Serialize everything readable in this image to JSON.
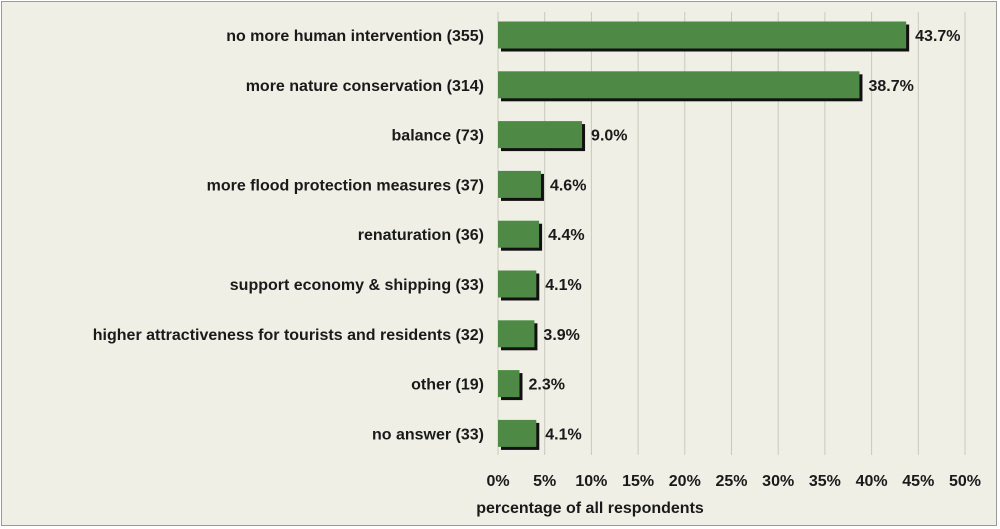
{
  "chart_data": {
    "type": "bar",
    "orientation": "horizontal",
    "categories": [
      "no more human intervention (355)",
      "more nature conservation (314)",
      "balance (73)",
      "more flood protection measures (37)",
      "renaturation (36)",
      "support economy & shipping (33)",
      "higher attractiveness for tourists and residents (32)",
      "other (19)",
      "no answer (33)"
    ],
    "values": [
      43.7,
      38.7,
      9.0,
      4.6,
      4.4,
      4.1,
      3.9,
      2.3,
      4.1
    ],
    "data_labels": [
      "43.7%",
      "38.7%",
      "9.0%",
      "4.6%",
      "4.4%",
      "4.1%",
      "3.9%",
      "2.3%",
      "4.1%"
    ],
    "xlabel": "percentage of all respondents",
    "ylabel": "",
    "xlim": [
      0,
      50
    ],
    "xticks": [
      "0%",
      "5%",
      "10%",
      "15%",
      "20%",
      "25%",
      "30%",
      "35%",
      "40%",
      "45%",
      "50%"
    ],
    "grid": "vertical",
    "legend": "none"
  },
  "colors": {
    "bar": "#4e8a45",
    "bar_shadow": "#111111",
    "background": "#efefe6",
    "grid": "#c8c8bc"
  }
}
